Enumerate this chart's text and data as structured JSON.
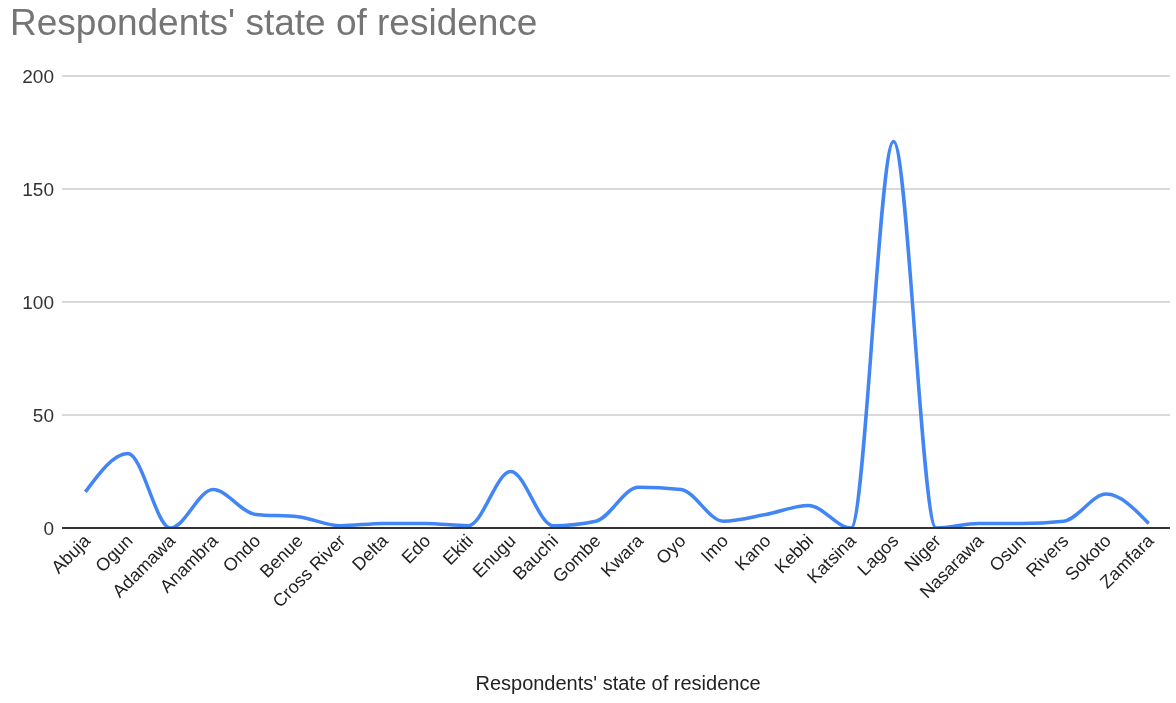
{
  "chart_data": {
    "type": "line",
    "title": "Respondents' state of residence",
    "xlabel": "Respondents' state of residence",
    "categories": [
      "Abuja",
      "Ogun",
      "Adamawa",
      "Anambra",
      "Ondo",
      "Benue",
      "Cross River",
      "Delta",
      "Edo",
      "Ekiti",
      "Enugu",
      "Bauchi",
      "Gombe",
      "Kwara",
      "Oyo",
      "Imo",
      "Kano",
      "Kebbi",
      "Katsina",
      "Lagos",
      "Niger",
      "Nasarawa",
      "Osun",
      "Rivers",
      "Sokoto",
      "Zamfara"
    ],
    "series": [
      {
        "color": "#4285f4",
        "values": [
          16,
          33,
          0,
          17,
          6,
          5,
          1,
          2,
          2,
          1,
          25,
          1,
          3,
          18,
          17,
          3,
          6,
          10,
          0,
          171,
          0,
          2,
          2,
          3,
          15,
          2
        ]
      }
    ],
    "ylim": [
      0,
      200
    ],
    "yticks": [
      0,
      50,
      100,
      150,
      200
    ],
    "grid": "y",
    "legend": false,
    "marker": "none",
    "line_style": "solid"
  }
}
